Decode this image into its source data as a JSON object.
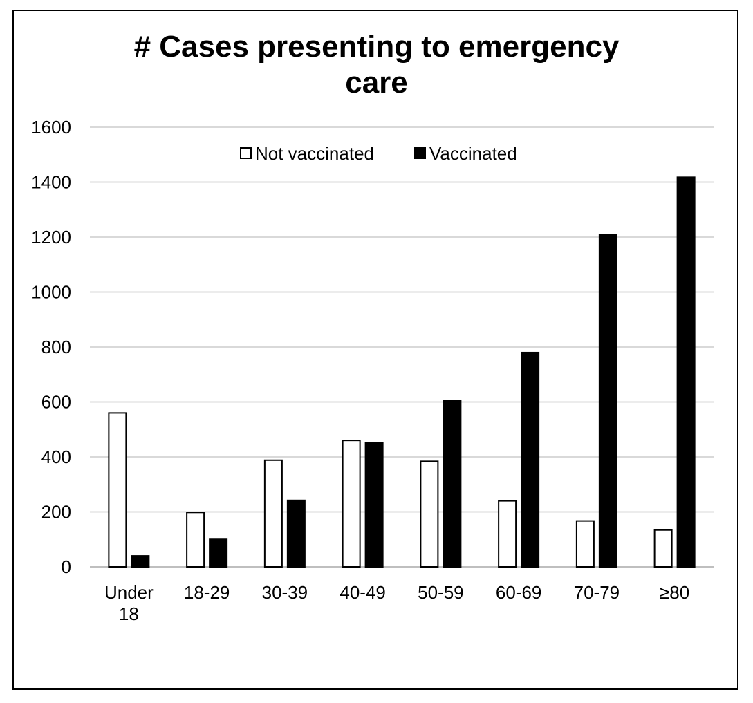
{
  "chart_data": {
    "type": "bar",
    "title_lines": [
      "# Cases presenting to emergency",
      "care"
    ],
    "categories": [
      [
        "Under",
        "18"
      ],
      [
        "18-29"
      ],
      [
        "30-39"
      ],
      [
        "40-49"
      ],
      [
        "50-59"
      ],
      [
        "60-69"
      ],
      [
        "70-79"
      ],
      [
        "≥80"
      ]
    ],
    "series": [
      {
        "name": "Not vaccinated",
        "fill": "#ffffff",
        "stroke": "#000000",
        "values": [
          560,
          198,
          388,
          460,
          384,
          240,
          167,
          134
        ]
      },
      {
        "name": "Vaccinated",
        "fill": "#000000",
        "stroke": "#000000",
        "values": [
          40,
          100,
          242,
          452,
          606,
          780,
          1208,
          1418
        ]
      }
    ],
    "ylim": [
      0,
      1600
    ],
    "yticks": [
      0,
      200,
      400,
      600,
      800,
      1000,
      1200,
      1400,
      1600
    ],
    "grid": true,
    "legend": "top-center",
    "colors": {
      "gridline": "#d9d9d9",
      "axis": "#bfbfbf",
      "text": "#000000"
    }
  }
}
